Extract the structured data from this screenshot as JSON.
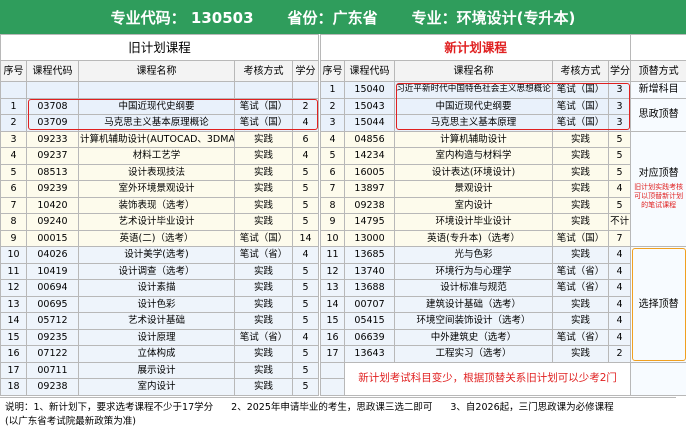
{
  "header": {
    "code_label": "专业代码：",
    "code": "130503",
    "province_label": "省份：",
    "province": "广东省",
    "major_label": "专业：",
    "major": "环境设计(专升本)"
  },
  "old_title": "旧计划课程",
  "new_title": "新计划课程",
  "columns": {
    "old": [
      "序号",
      "课程代码",
      "课程名称",
      "考核方式",
      "学分"
    ],
    "new": [
      "序号",
      "课程代码",
      "课程名称",
      "考核方式",
      "学分"
    ],
    "replacement": "顶替方式"
  },
  "old_rows": [
    null,
    [
      1,
      "03708",
      "中国近现代史纲要",
      "笔试（国）",
      2
    ],
    [
      2,
      "03709",
      "马克思主义基本原理概论",
      "笔试（国）",
      4
    ],
    [
      3,
      "09233",
      "计算机辅助设计(AUTOCAD、3DMAX)",
      "实践",
      6
    ],
    [
      4,
      "09237",
      "材料工艺学",
      "实践",
      4
    ],
    [
      5,
      "08513",
      "设计表现技法",
      "实践",
      5
    ],
    [
      6,
      "09239",
      "室外环境景观设计",
      "实践",
      5
    ],
    [
      7,
      "10420",
      "装饰表现（选考）",
      "实践",
      5
    ],
    [
      8,
      "09240",
      "艺术设计毕业设计",
      "实践",
      5
    ],
    [
      9,
      "00015",
      "英语(二)（选考）",
      "笔试（国）",
      14
    ],
    [
      10,
      "04026",
      "设计美学(选考)",
      "笔试（省）",
      4
    ],
    [
      11,
      "10419",
      "设计调查（选考）",
      "实践",
      5
    ],
    [
      12,
      "00694",
      "设计素描",
      "实践",
      5
    ],
    [
      13,
      "00695",
      "设计色彩",
      "实践",
      5
    ],
    [
      14,
      "05712",
      "艺术设计基础",
      "实践",
      5
    ],
    [
      15,
      "09235",
      "设计原理",
      "笔试（省）",
      4
    ],
    [
      16,
      "07122",
      "立体构成",
      "实践",
      5
    ],
    [
      17,
      "00711",
      "展示设计",
      "实践",
      5
    ],
    [
      18,
      "09238",
      "室内设计",
      "实践",
      5
    ]
  ],
  "new_rows": [
    [
      1,
      "15040",
      "习近平新时代中国特色社会主义思想概论",
      "笔试（国）",
      3
    ],
    [
      2,
      "15043",
      "中国近现代史纲要",
      "笔试（国）",
      3
    ],
    [
      3,
      "15044",
      "马克思主义基本原理",
      "笔试（国）",
      3
    ],
    [
      4,
      "04856",
      "计算机辅助设计",
      "实践",
      5
    ],
    [
      5,
      "14234",
      "室内构造与材料学",
      "实践",
      5
    ],
    [
      6,
      "16005",
      "设计表达(环境设计)",
      "实践",
      5
    ],
    [
      7,
      "13897",
      "景观设计",
      "实践",
      4
    ],
    [
      8,
      "09238",
      "室内设计",
      "实践",
      5
    ],
    [
      9,
      "14795",
      "环境设计毕业设计",
      "实践",
      "不计"
    ],
    [
      10,
      "13000",
      "英语(专升本)（选考）",
      "笔试（国）",
      7
    ],
    [
      11,
      "13685",
      "光与色彩",
      "实践",
      4
    ],
    [
      12,
      "13740",
      "环境行为与心理学",
      "笔试（省）",
      4
    ],
    [
      13,
      "13688",
      "设计标准与规范",
      "笔试（省）",
      4
    ],
    [
      14,
      "00707",
      "建筑设计基础（选考）",
      "实践",
      4
    ],
    [
      15,
      "05415",
      "环境空间装饰设计（选考）",
      "实践",
      4
    ],
    [
      16,
      "06639",
      "中外建筑史（选考）",
      "笔试（省）",
      4
    ],
    [
      17,
      "13643",
      "工程实习（选考）",
      "实践",
      2
    ]
  ],
  "replacements": [
    "新增科目",
    "思政顶替",
    "对应顶替",
    "选择顶替"
  ],
  "replacement_note": "旧计划实践考核可以顶替新计划的笔试课程",
  "note": "新计划考试科目变少，根据顶替关系旧计划可以少考2门",
  "footer": {
    "label": "说明：",
    "items": [
      "1、新计划下，要求选考课程不少于17学分",
      "2、2025年申请毕业的考生，思政课三选二即可",
      "3、自2026起，三门思政课为必修课程"
    ],
    "remark": "(以广东省考试院最新政策为准)"
  }
}
